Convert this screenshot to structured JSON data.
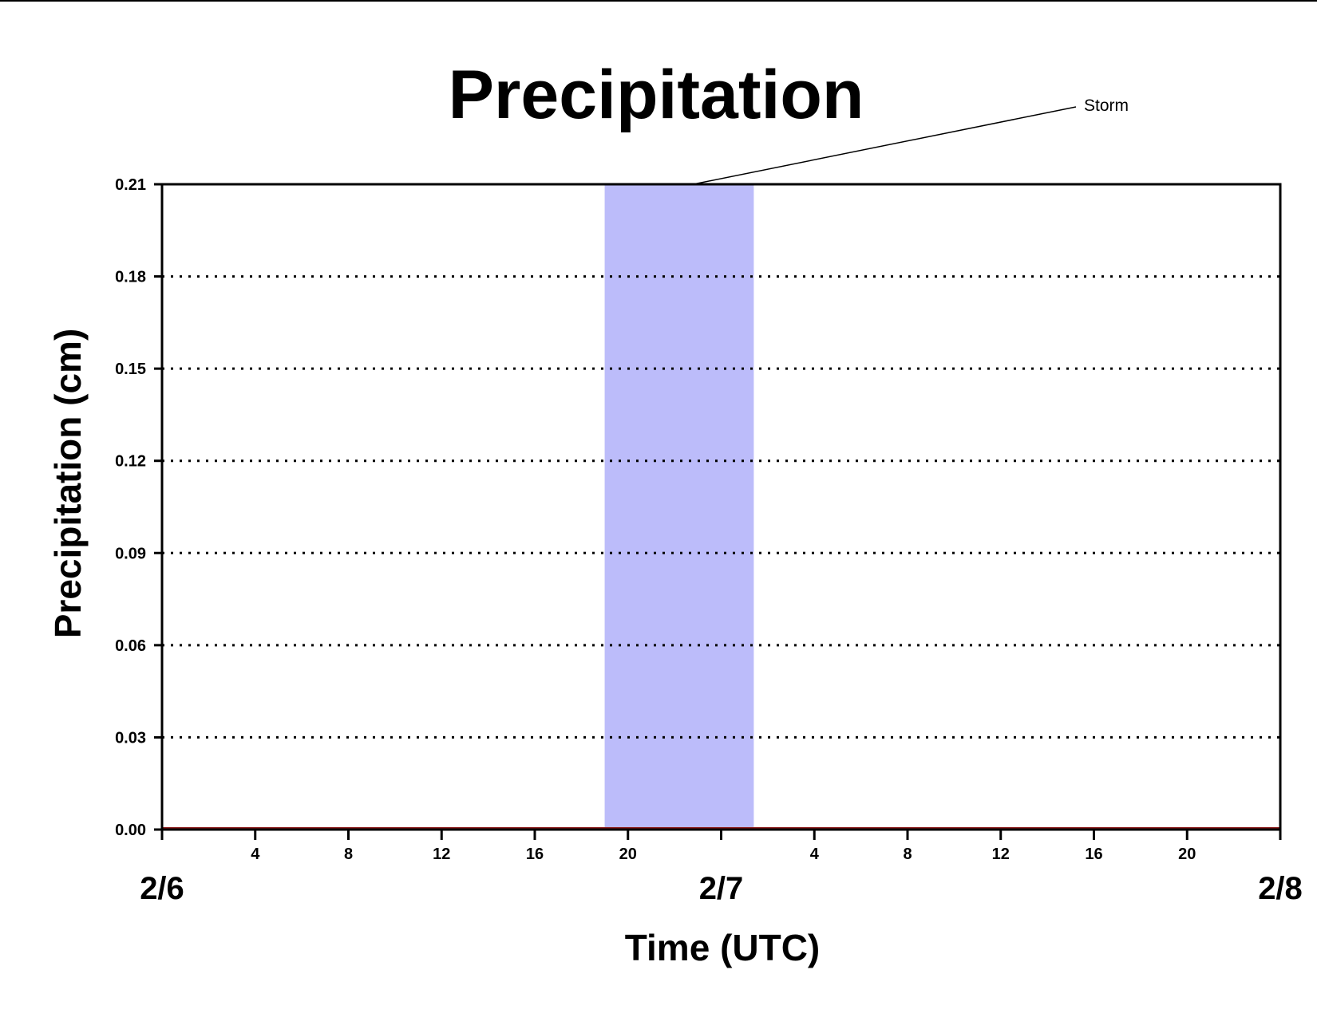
{
  "chart_data": {
    "type": "area",
    "title": "Precipitation",
    "xlabel": "Time (UTC)",
    "ylabel": "Precipitation (cm)",
    "ylim": [
      0,
      0.21
    ],
    "yticks": [
      "0.00",
      "0.03",
      "0.06",
      "0.09",
      "0.12",
      "0.15",
      "0.18",
      "0.21"
    ],
    "y_gridlines": [
      0.03,
      0.06,
      0.09,
      0.12,
      0.15,
      0.18
    ],
    "grid": "horizontal dotted",
    "xlim_hours": [
      0,
      48
    ],
    "x_minor_ticks": [
      {
        "hour": 4,
        "label": "4"
      },
      {
        "hour": 8,
        "label": "8"
      },
      {
        "hour": 12,
        "label": "12"
      },
      {
        "hour": 16,
        "label": "16"
      },
      {
        "hour": 20,
        "label": "20"
      },
      {
        "hour": 24,
        "label": ""
      },
      {
        "hour": 28,
        "label": "4"
      },
      {
        "hour": 32,
        "label": "8"
      },
      {
        "hour": 36,
        "label": "12"
      },
      {
        "hour": 40,
        "label": "16"
      },
      {
        "hour": 44,
        "label": "20"
      }
    ],
    "x_date_labels": [
      {
        "hour": 0,
        "label": "2/6"
      },
      {
        "hour": 24,
        "label": "2/7"
      },
      {
        "hour": 48,
        "label": "2/8"
      }
    ],
    "series": [
      {
        "values_hours": [
          0,
          48
        ],
        "values": [
          0,
          0
        ],
        "color": "#8b1a1a"
      }
    ],
    "shaded_period": {
      "start_hour": 19,
      "end_hour": 25.4,
      "color": "#bcbcfa"
    },
    "annotation": {
      "text": "Storm",
      "target_hour": 22.8,
      "target_value": 0.21
    }
  }
}
